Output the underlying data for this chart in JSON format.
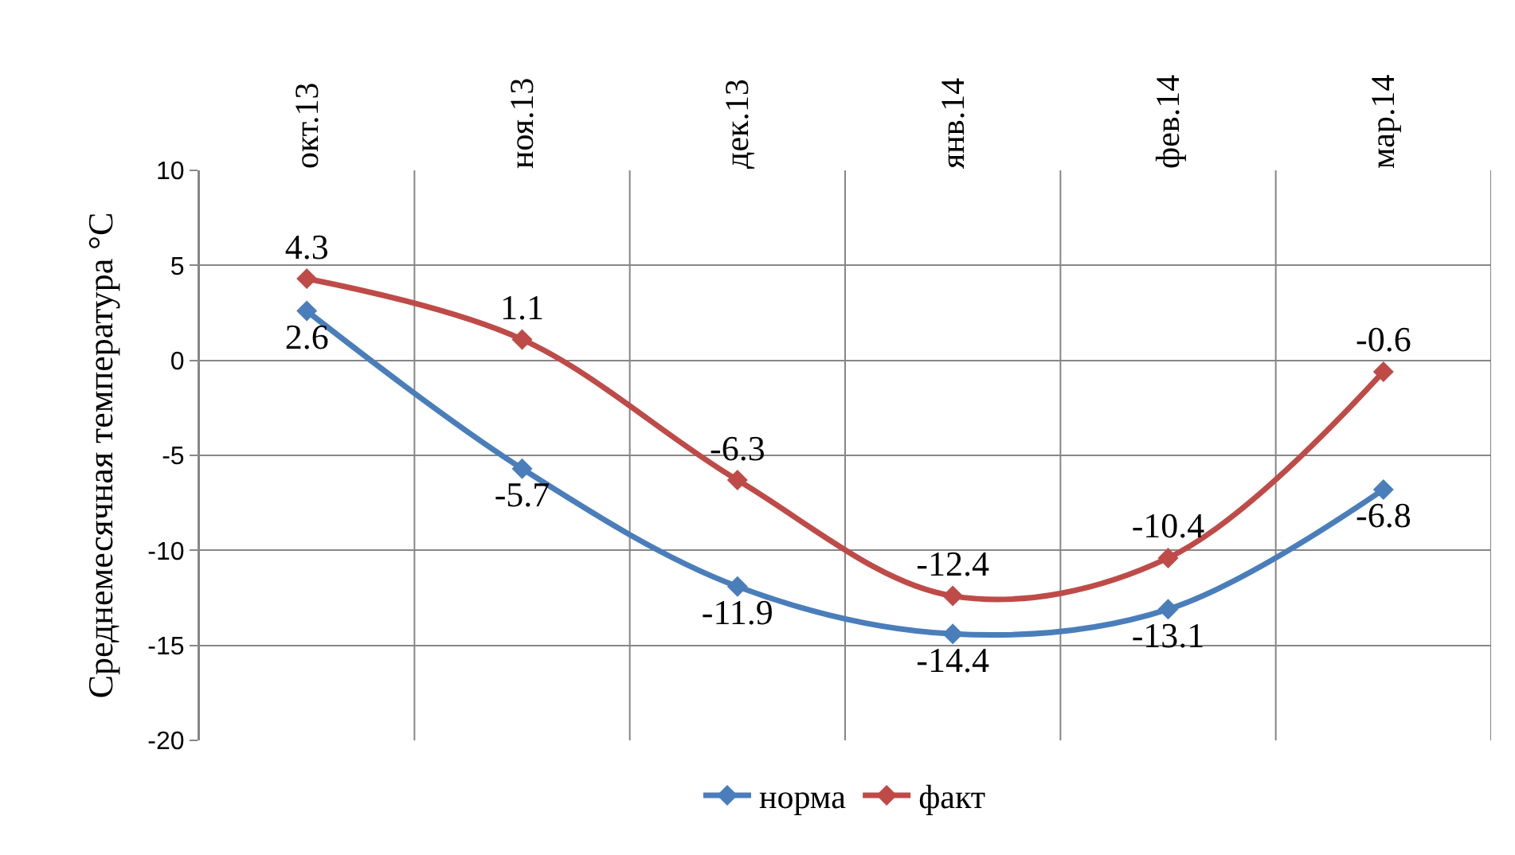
{
  "chart_data": {
    "type": "line",
    "ylabel": "Среднемесячная температура °C",
    "categories": [
      "окт.13",
      "ноя.13",
      "дек.13",
      "янв.14",
      "фев.14",
      "мар.14"
    ],
    "series": [
      {
        "name": "норма",
        "color": "#4a7ebb",
        "values": [
          2.6,
          -5.7,
          -11.9,
          -14.4,
          -13.1,
          -6.8
        ]
      },
      {
        "name": "факт",
        "color": "#be4b48",
        "values": [
          4.3,
          1.1,
          -6.3,
          -12.4,
          -10.4,
          -0.6
        ]
      }
    ],
    "ylim": [
      -20,
      10
    ],
    "yticks": [
      -20,
      -15,
      -10,
      -5,
      0,
      5,
      10
    ],
    "grid": true,
    "legend": "bottom",
    "marker": "diamond",
    "line_style": "solid",
    "data_labels": true
  }
}
